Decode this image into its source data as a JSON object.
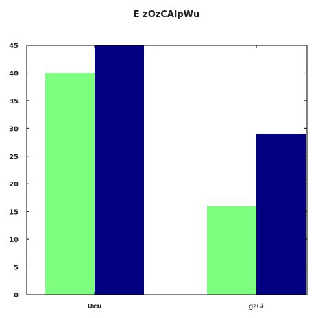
{
  "chart_data": {
    "type": "bar",
    "title": "E zOzCAlpWu",
    "xlabel": "",
    "ylabel": "",
    "categories": [
      "Ucu",
      "gzGi"
    ],
    "series": [
      {
        "values": [
          40,
          16
        ],
        "color": "#7fff7f"
      },
      {
        "values": [
          45,
          29
        ],
        "color": "#000080"
      }
    ],
    "ylim": [
      0,
      45
    ],
    "yticks": [
      0,
      5,
      10,
      15,
      20,
      25,
      30,
      35,
      40,
      45
    ],
    "grid": false,
    "legend": "none"
  }
}
